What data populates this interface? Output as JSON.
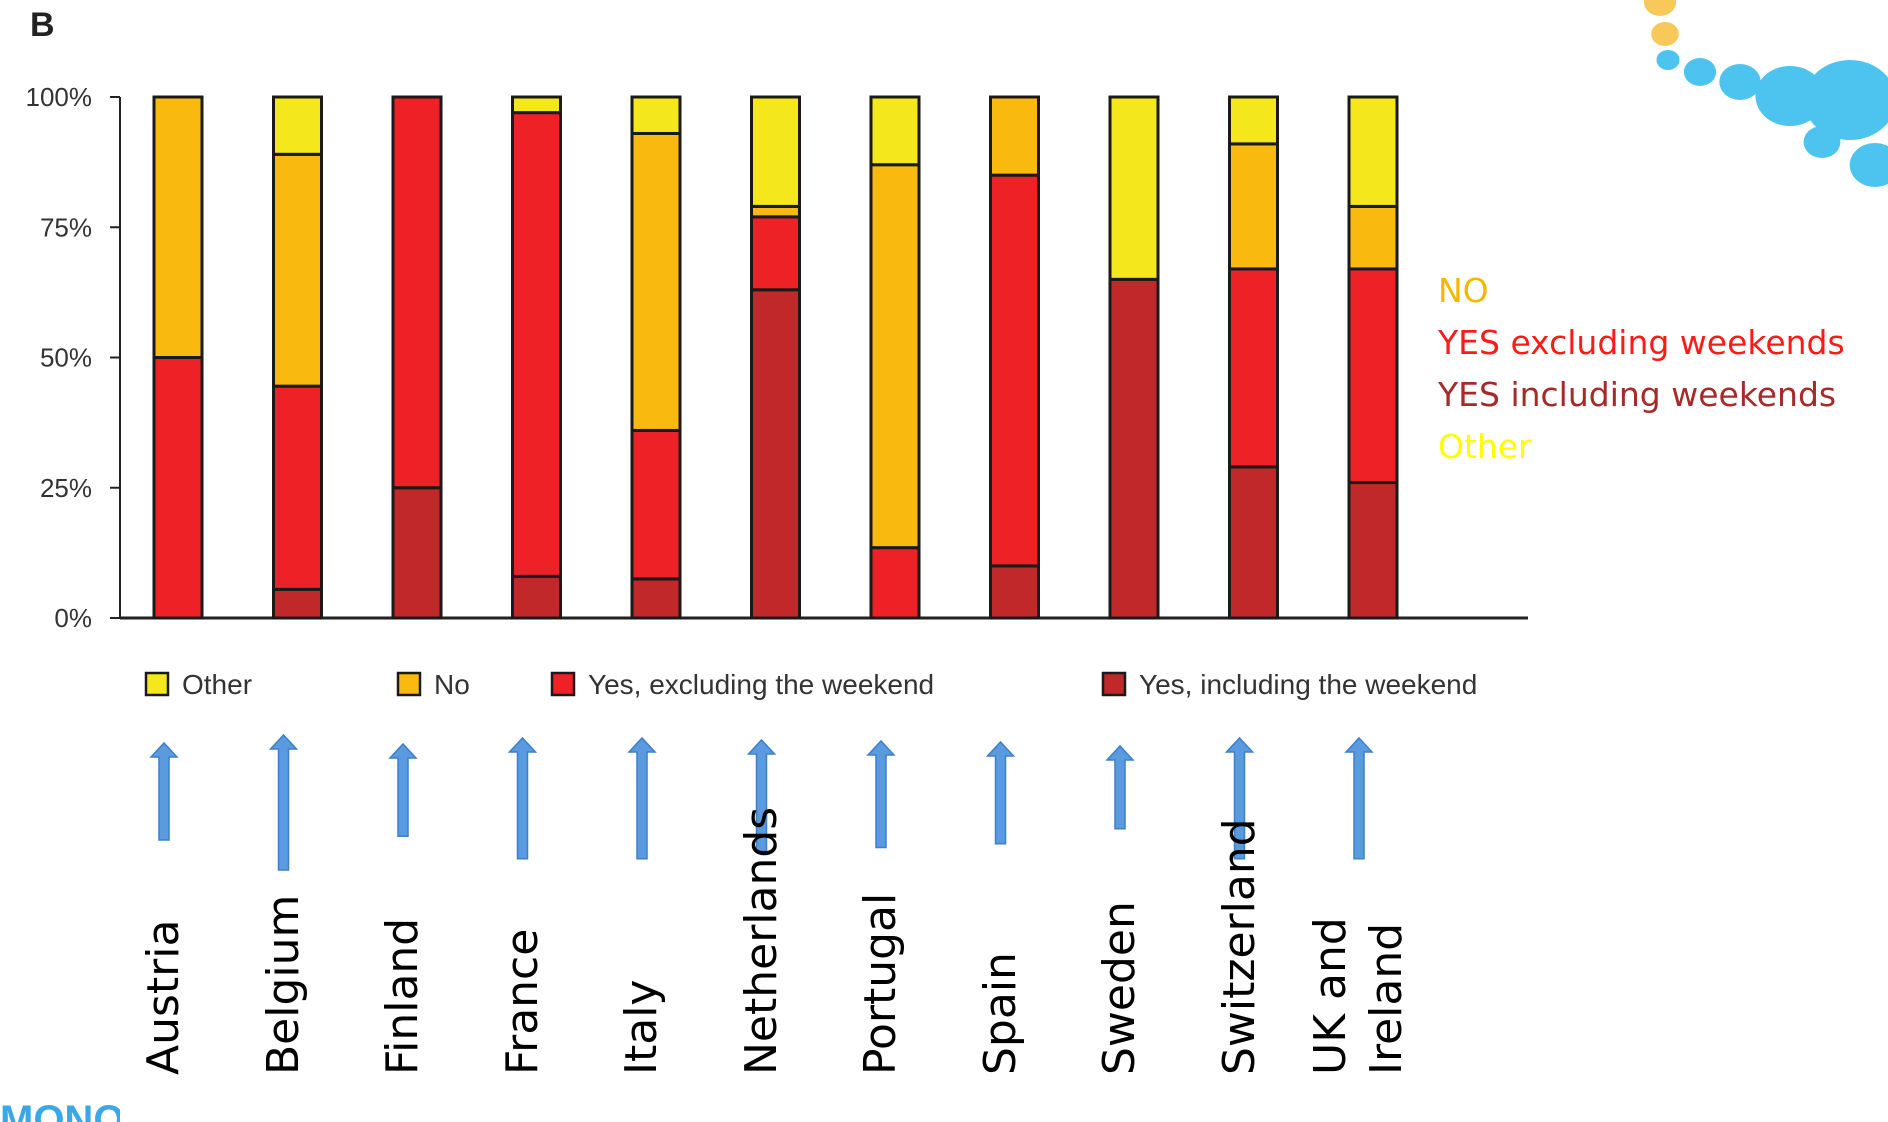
{
  "panel_label": "B",
  "footer_text": "MONOL",
  "annotations": [
    {
      "text": "NO",
      "color": "#f5b800"
    },
    {
      "text": "YES excluding weekends",
      "color": "#ff1a1a"
    },
    {
      "text": "YES including weekends",
      "color": "#a52a2a"
    },
    {
      "text": "Other",
      "color": "#ffff00"
    }
  ],
  "country_labels": [
    "Austria",
    "Belgium",
    "Finland",
    "France",
    "Italy",
    "Netherlands",
    "Portugal",
    "Spain",
    "Sweden",
    "Switzerland",
    "UK and\nIreland"
  ],
  "colors": {
    "yes_including": "#c0282a",
    "yes_excluding": "#ee2126",
    "no": "#f9b90f",
    "other": "#f4e81c",
    "arrow": "#5a9be0",
    "decor": "#4cc4ef",
    "decor_accent": "#f8c85a"
  },
  "chart_data": {
    "type": "bar",
    "stacked": true,
    "categories": [
      "",
      "",
      "",
      "",
      "",
      "",
      "",
      "",
      "",
      "",
      ""
    ],
    "series": [
      {
        "name": "Yes, including the weekend",
        "color": "#c0282a",
        "values": [
          0,
          5.5,
          25,
          8,
          7.5,
          63,
          0,
          10,
          65,
          29,
          26
        ]
      },
      {
        "name": "Yes, excluding the weekend",
        "color": "#ee2126",
        "values": [
          50,
          39,
          75,
          89,
          28.5,
          14,
          13.5,
          75,
          0,
          38,
          41
        ]
      },
      {
        "name": "No",
        "color": "#f9b90f",
        "values": [
          50,
          44.5,
          0,
          0,
          57,
          2,
          73.5,
          15,
          0,
          24,
          12
        ]
      },
      {
        "name": "Other",
        "color": "#f4e81c",
        "values": [
          0,
          11,
          0,
          3,
          7,
          21,
          13,
          0,
          35,
          9,
          21
        ]
      }
    ],
    "yticks": [
      "0%",
      "25%",
      "50%",
      "75%",
      "100%"
    ],
    "ylim": [
      0,
      100
    ],
    "legend": [
      "Other",
      "No",
      "Yes, excluding the weekend",
      "Yes, including the weekend"
    ],
    "legend_position": "bottom",
    "arrow_strengths": [
      0.6,
      1.0,
      0.55,
      0.85,
      0.85,
      0.75,
      0.7,
      0.65,
      0.45,
      0.85,
      0.85
    ]
  }
}
